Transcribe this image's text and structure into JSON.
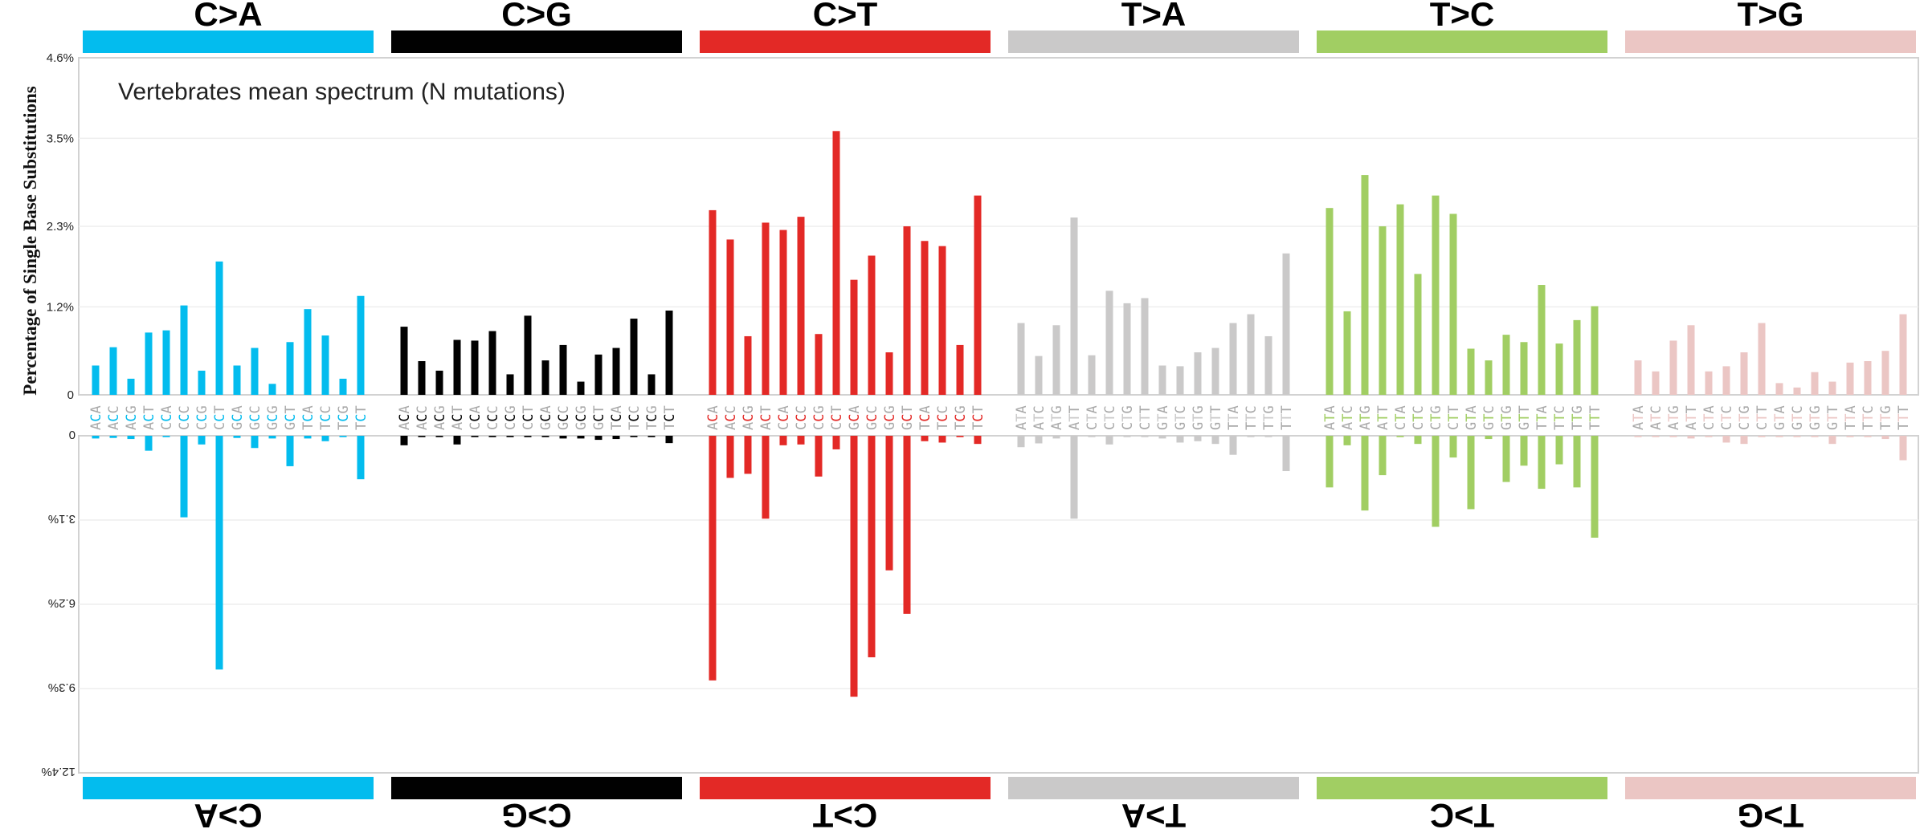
{
  "chart_data": {
    "type": "bar",
    "title": "Vertebrates mean spectrum (N mutations)",
    "ylabel": "Percentage of Single Base Substitutions",
    "top_panel": {
      "ylim": [
        0,
        4.6
      ],
      "yticks": [
        0,
        1.2,
        2.3,
        3.5,
        4.6
      ],
      "ytick_labels": [
        "0",
        "1.2%",
        "2.3%",
        "3.5%",
        "4.6%"
      ]
    },
    "bottom_panel": {
      "ylim": [
        0,
        12.4
      ],
      "yticks": [
        0,
        3.1,
        6.2,
        9.3,
        12.4
      ],
      "ytick_labels": [
        "0",
        "3.1%",
        "6.2%",
        "9.3%",
        "12.4%"
      ],
      "orientation": "rotated 180 degrees (mirrored)"
    },
    "grid": true,
    "substitution_types": [
      {
        "name": "C>A",
        "color": "#03bcee"
      },
      {
        "name": "C>G",
        "color": "#010101"
      },
      {
        "name": "C>T",
        "color": "#e32926"
      },
      {
        "name": "T>A",
        "color": "#cac9c9"
      },
      {
        "name": "T>C",
        "color": "#a1ce63"
      },
      {
        "name": "T>G",
        "color": "#ebc6c4"
      }
    ],
    "contexts": [
      [
        "ACA",
        "ACC",
        "ACG",
        "ACT",
        "CCA",
        "CCC",
        "CCG",
        "CCT",
        "GCA",
        "GCC",
        "GCG",
        "GCT",
        "TCA",
        "TCC",
        "TCG",
        "TCT"
      ],
      [
        "ACA",
        "ACC",
        "ACG",
        "ACT",
        "CCA",
        "CCC",
        "CCG",
        "CCT",
        "GCA",
        "GCC",
        "GCG",
        "GCT",
        "TCA",
        "TCC",
        "TCG",
        "TCT"
      ],
      [
        "ACA",
        "ACC",
        "ACG",
        "ACT",
        "CCA",
        "CCC",
        "CCG",
        "CCT",
        "GCA",
        "GCC",
        "GCG",
        "GCT",
        "TCA",
        "TCC",
        "TCG",
        "TCT"
      ],
      [
        "ATA",
        "ATC",
        "ATG",
        "ATT",
        "CTA",
        "CTC",
        "CTG",
        "CTT",
        "GTA",
        "GTC",
        "GTG",
        "GTT",
        "TTA",
        "TTC",
        "TTG",
        "TTT"
      ],
      [
        "ATA",
        "ATC",
        "ATG",
        "ATT",
        "CTA",
        "CTC",
        "CTG",
        "CTT",
        "GTA",
        "GTC",
        "GTG",
        "GTT",
        "TTA",
        "TTC",
        "TTG",
        "TTT"
      ],
      [
        "ATA",
        "ATC",
        "ATG",
        "ATT",
        "CTA",
        "CTC",
        "CTG",
        "CTT",
        "GTA",
        "GTC",
        "GTG",
        "GTT",
        "TTA",
        "TTC",
        "TTG",
        "TTT"
      ]
    ],
    "top_values": [
      [
        0.4,
        0.65,
        0.22,
        0.85,
        0.88,
        1.22,
        0.33,
        1.82,
        0.4,
        0.64,
        0.15,
        0.72,
        1.17,
        0.81,
        0.22,
        1.35
      ],
      [
        0.93,
        0.46,
        0.33,
        0.75,
        0.74,
        0.87,
        0.28,
        1.08,
        0.47,
        0.68,
        0.18,
        0.55,
        0.64,
        1.04,
        0.28,
        1.15
      ],
      [
        2.52,
        2.12,
        0.8,
        2.35,
        2.25,
        2.43,
        0.83,
        3.6,
        1.57,
        1.9,
        0.58,
        2.3,
        2.1,
        2.03,
        0.68,
        2.72
      ],
      [
        0.98,
        0.53,
        0.95,
        2.42,
        0.54,
        1.42,
        1.25,
        1.32,
        0.4,
        0.39,
        0.58,
        0.64,
        0.98,
        1.1,
        0.8,
        1.93
      ],
      [
        2.55,
        1.14,
        3.0,
        2.3,
        2.6,
        1.65,
        2.72,
        2.47,
        0.63,
        0.47,
        0.82,
        0.72,
        1.5,
        0.7,
        1.02,
        1.21
      ],
      [
        0.47,
        0.32,
        0.74,
        0.95,
        0.32,
        0.39,
        0.58,
        0.98,
        0.16,
        0.1,
        0.31,
        0.18,
        0.44,
        0.46,
        0.6,
        1.1
      ]
    ],
    "bottom_values": [
      [
        0.1,
        0.08,
        0.12,
        0.55,
        0.05,
        3.0,
        0.32,
        8.6,
        0.08,
        0.45,
        0.1,
        1.12,
        0.1,
        0.2,
        0.05,
        1.6
      ],
      [
        0.35,
        0.05,
        0.05,
        0.32,
        0.05,
        0.05,
        0.05,
        0.05,
        0.05,
        0.1,
        0.1,
        0.15,
        0.12,
        0.05,
        0.05,
        0.27
      ],
      [
        9.0,
        1.55,
        1.4,
        3.05,
        0.35,
        0.32,
        1.5,
        0.5,
        9.6,
        8.15,
        4.95,
        6.55,
        0.2,
        0.25,
        0.05,
        0.3
      ],
      [
        0.42,
        0.28,
        0.1,
        3.05,
        0.05,
        0.32,
        0.05,
        0.05,
        0.1,
        0.25,
        0.2,
        0.3,
        0.7,
        0.05,
        0.05,
        1.3
      ],
      [
        1.9,
        0.35,
        2.75,
        1.45,
        0.05,
        0.3,
        3.35,
        0.8,
        2.7,
        0.12,
        1.7,
        1.1,
        1.95,
        1.05,
        1.9,
        3.75
      ],
      [
        0.05,
        0.05,
        0.05,
        0.1,
        0.05,
        0.25,
        0.3,
        0.05,
        0.05,
        0.05,
        0.05,
        0.3,
        0.05,
        0.05,
        0.12,
        0.9
      ]
    ]
  }
}
